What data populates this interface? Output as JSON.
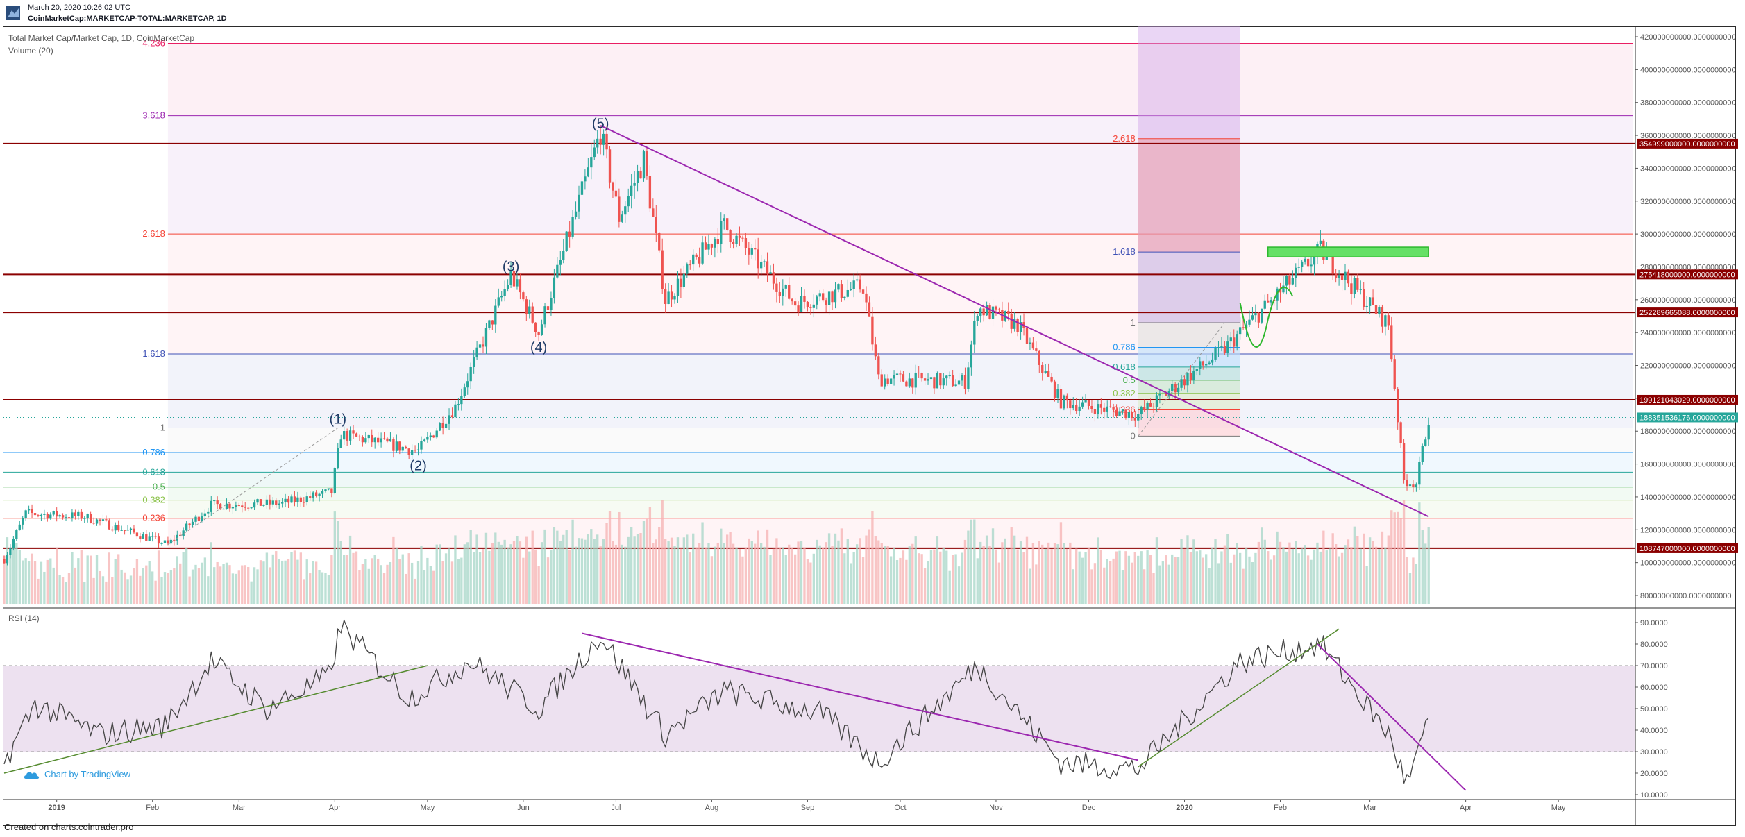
{
  "header": {
    "date": "March 20, 2020 10:26:02 UTC",
    "symbol": "CoinMarketCap:MARKETCAP-TOTAL:MARKETCAP, 1D"
  },
  "legend": {
    "title": "Total Market Cap/Market Cap, 1D, CoinMarketCap",
    "volume": "Volume (20)"
  },
  "rsi_label": "RSI (14)",
  "watermark": "Chart by TradingView",
  "footer": "Created on charts.cointrader.pro",
  "colors": {
    "up": "#26a69a",
    "down": "#ef5350",
    "support_line": "#8b0000",
    "trendline": "#9c27b0",
    "rsi_trendline_green": "#558b2f",
    "rsi_band": "#e1bee7",
    "current_tag": "#26a69a"
  },
  "chart_data": [
    {
      "type": "candlestick",
      "title": "Total Market Cap/Market Cap, 1D, CoinMarketCap",
      "x_axis_labels": [
        "2019",
        "Feb",
        "Mar",
        "Apr",
        "May",
        "Jun",
        "Jul",
        "Aug",
        "Sep",
        "Oct",
        "Nov",
        "Dec",
        "2020",
        "Feb",
        "Mar",
        "Apr",
        "May"
      ],
      "y_axis_ticks": [
        "420000000000.0000000000",
        "400000000000.0000000000",
        "380000000000.0000000000",
        "360000000000.0000000000",
        "340000000000.0000000000",
        "320000000000.0000000000",
        "300000000000.0000000000",
        "280000000000.0000000000",
        "260000000000.0000000000",
        "240000000000.0000000000",
        "220000000000.0000000000",
        "200000000000.0000000000",
        "180000000000.0000000000",
        "160000000000.0000000000",
        "140000000000.0000000000",
        "120000000000.0000000000",
        "100000000000.0000000000",
        "80000000000.0000000000"
      ],
      "ylim": [
        75000000000,
        425000000000
      ],
      "horizontal_levels": [
        {
          "value": 354999000000,
          "label": "354999000000.0000000000"
        },
        {
          "value": 275418000000,
          "label": "275418000000.0000000000"
        },
        {
          "value": 252289665088,
          "label": "252289665088.0000000000"
        },
        {
          "value": 199121043029,
          "label": "199121043029.0000000000"
        },
        {
          "value": 108747000000,
          "label": "108747000000.0000000000"
        }
      ],
      "current_price": {
        "value": 188351536176,
        "label": "188351536176.0000000000"
      },
      "fib_extension_1": [
        {
          "level": "4.236",
          "value": 416000000000
        },
        {
          "level": "3.618",
          "value": 372000000000
        },
        {
          "level": "2.618",
          "value": 300000000000
        },
        {
          "level": "1.618",
          "value": 227000000000
        },
        {
          "level": "1",
          "value": 182000000000
        },
        {
          "level": "0.786",
          "value": 167000000000
        },
        {
          "level": "0.618",
          "value": 155000000000
        },
        {
          "level": "0.5",
          "value": 146000000000
        },
        {
          "level": "0.382",
          "value": 138000000000
        },
        {
          "level": "0.236",
          "value": 127000000000
        }
      ],
      "fib_extension_2": [
        {
          "level": "2.618",
          "value": 358000000000
        },
        {
          "level": "1.618",
          "value": 289000000000
        },
        {
          "level": "1",
          "value": 246000000000
        },
        {
          "level": "0.786",
          "value": 231000000000
        },
        {
          "level": "0.618",
          "value": 219000000000
        },
        {
          "level": "0.5",
          "value": 211000000000
        },
        {
          "level": "0.382",
          "value": 203000000000
        },
        {
          "level": "0.236",
          "value": 193000000000
        },
        {
          "level": "0",
          "value": 177000000000
        }
      ],
      "elliott_waves": [
        {
          "label": "(1)",
          "date": "2019-04-02"
        },
        {
          "label": "(2)",
          "date": "2019-04-28"
        },
        {
          "label": "(3)",
          "date": "2019-05-28"
        },
        {
          "label": "(4)",
          "date": "2019-06-06"
        },
        {
          "label": "(5)",
          "date": "2019-06-26"
        }
      ],
      "trendline": {
        "from": [
          "2019-06-26",
          366000000000
        ],
        "to": [
          "2020-03-20",
          128000000000
        ]
      },
      "price_waypoints": [
        [
          "2018-12-15",
          102000000000
        ],
        [
          "2018-12-22",
          130000000000
        ],
        [
          "2019-01-10",
          128000000000
        ],
        [
          "2019-02-06",
          111000000000
        ],
        [
          "2019-02-20",
          135000000000
        ],
        [
          "2019-03-15",
          136000000000
        ],
        [
          "2019-03-31",
          143000000000
        ],
        [
          "2019-04-03",
          178000000000
        ],
        [
          "2019-04-28",
          168000000000
        ],
        [
          "2019-05-10",
          195000000000
        ],
        [
          "2019-05-28",
          275000000000
        ],
        [
          "2019-06-06",
          240000000000
        ],
        [
          "2019-06-26",
          362000000000
        ],
        [
          "2019-07-02",
          310000000000
        ],
        [
          "2019-07-10",
          345000000000
        ],
        [
          "2019-07-17",
          260000000000
        ],
        [
          "2019-08-05",
          305000000000
        ],
        [
          "2019-08-28",
          258000000000
        ],
        [
          "2019-09-19",
          268000000000
        ],
        [
          "2019-09-24",
          212000000000
        ],
        [
          "2019-10-22",
          210000000000
        ],
        [
          "2019-10-26",
          255000000000
        ],
        [
          "2019-11-08",
          245000000000
        ],
        [
          "2019-11-22",
          198000000000
        ],
        [
          "2019-12-17",
          190000000000
        ],
        [
          "2020-01-14",
          230000000000
        ],
        [
          "2020-01-19",
          240000000000
        ],
        [
          "2020-02-14",
          290000000000
        ],
        [
          "2020-02-26",
          265000000000
        ],
        [
          "2020-03-07",
          245000000000
        ],
        [
          "2020-03-12",
          150000000000
        ],
        [
          "2020-03-16",
          148000000000
        ],
        [
          "2020-03-20",
          188000000000
        ]
      ]
    },
    {
      "type": "line",
      "title": "RSI (14)",
      "y_axis_ticks": [
        "90.0000",
        "80.0000",
        "70.0000",
        "60.0000",
        "50.0000",
        "40.0000",
        "30.0000",
        "20.0000",
        "10.0000"
      ],
      "ylim": [
        10,
        95
      ],
      "bands": [
        30,
        70
      ],
      "rsi_waypoints": [
        [
          "2018-12-15",
          25
        ],
        [
          "2018-12-25",
          52
        ],
        [
          "2019-01-15",
          38
        ],
        [
          "2019-02-05",
          42
        ],
        [
          "2019-02-20",
          72
        ],
        [
          "2019-03-10",
          50
        ],
        [
          "2019-03-30",
          65
        ],
        [
          "2019-04-03",
          88
        ],
        [
          "2019-04-25",
          55
        ],
        [
          "2019-05-15",
          72
        ],
        [
          "2019-06-06",
          50
        ],
        [
          "2019-06-26",
          84
        ],
        [
          "2019-07-17",
          38
        ],
        [
          "2019-08-05",
          58
        ],
        [
          "2019-09-05",
          48
        ],
        [
          "2019-09-24",
          25
        ],
        [
          "2019-10-26",
          70
        ],
        [
          "2019-11-22",
          25
        ],
        [
          "2019-12-17",
          22
        ],
        [
          "2020-01-19",
          72
        ],
        [
          "2020-02-14",
          80
        ],
        [
          "2020-03-07",
          38
        ],
        [
          "2020-03-13",
          15
        ],
        [
          "2020-03-20",
          43
        ]
      ],
      "trendlines": [
        {
          "color": "green",
          "from": [
            "2018-12-15",
            20
          ],
          "to": [
            "2019-05-01",
            70
          ]
        },
        {
          "color": "purple",
          "from": [
            "2019-06-20",
            85
          ],
          "to": [
            "2019-12-17",
            26
          ]
        },
        {
          "color": "green",
          "from": [
            "2019-12-17",
            23
          ],
          "to": [
            "2020-02-20",
            87
          ]
        },
        {
          "color": "purple",
          "from": [
            "2020-02-13",
            80
          ],
          "to": [
            "2020-04-01",
            12
          ]
        }
      ]
    }
  ]
}
